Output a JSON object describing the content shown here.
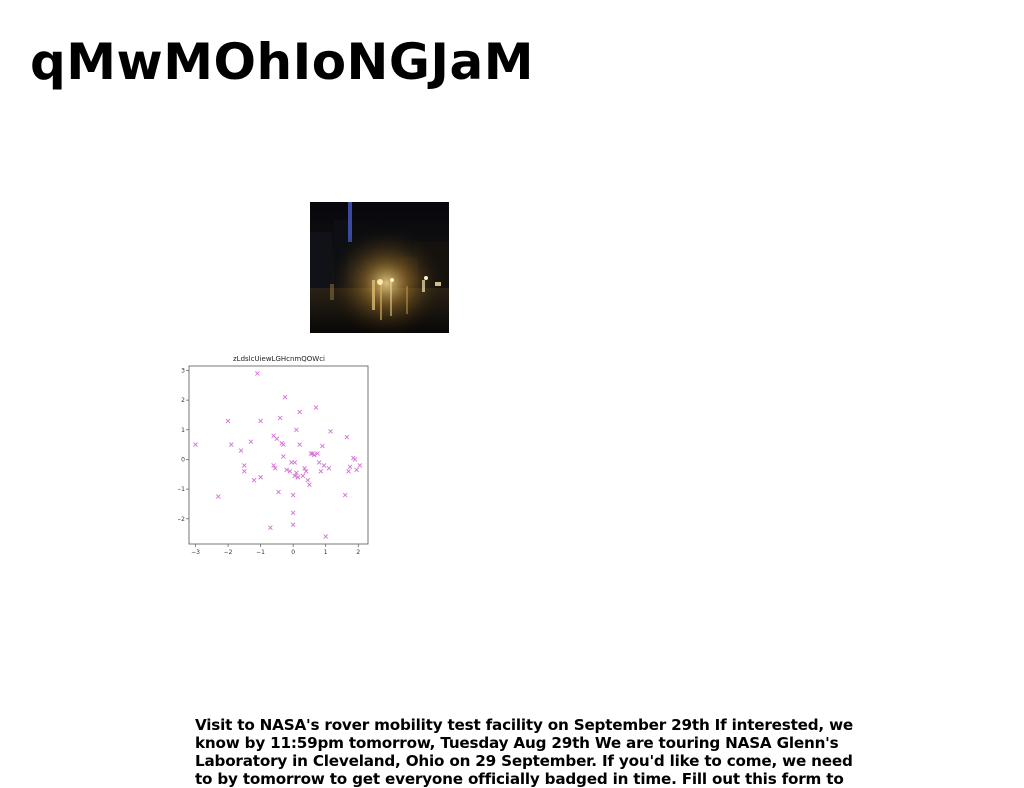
{
  "page": {
    "title": "qMwMOhIoNGJaM",
    "body_text": "Visit to NASA's rover mobility test facility on September 29th If interested, we know by 11:59pm tomorrow, Tuesday Aug 29th We are touring NASA Glenn's Laboratory in Cleveland, Ohio on 29 September. If you'd like to come, we need to by tomorrow to get everyone officially badged in time. Fill out this form to"
  },
  "photo": {
    "subject": "night-street-with-lights"
  },
  "chart_data": {
    "type": "scatter",
    "title": "zLdslcUiewLGHcnmQOWci",
    "xlabel": "",
    "ylabel": "",
    "xlim": [
      -3.2,
      2.3
    ],
    "ylim": [
      -2.85,
      3.15
    ],
    "xticks": [
      -3,
      -2,
      -1,
      0,
      1,
      2
    ],
    "yticks": [
      -2,
      -1,
      0,
      1,
      2,
      3
    ],
    "grid": false,
    "marker": "x",
    "color": "#d670d6",
    "points": [
      [
        -3.0,
        0.5
      ],
      [
        -2.3,
        -1.25
      ],
      [
        -2.0,
        1.3
      ],
      [
        -1.9,
        0.5
      ],
      [
        -1.6,
        0.3
      ],
      [
        -1.5,
        -0.2
      ],
      [
        -1.5,
        -0.4
      ],
      [
        -1.3,
        0.6
      ],
      [
        -1.2,
        -0.7
      ],
      [
        -1.1,
        2.9
      ],
      [
        -1.0,
        1.3
      ],
      [
        -1.0,
        -0.6
      ],
      [
        -0.7,
        -2.3
      ],
      [
        -0.6,
        0.8
      ],
      [
        -0.6,
        -0.2
      ],
      [
        -0.55,
        -0.3
      ],
      [
        -0.5,
        0.7
      ],
      [
        -0.45,
        -1.1
      ],
      [
        -0.4,
        1.4
      ],
      [
        -0.35,
        0.55
      ],
      [
        -0.3,
        0.5
      ],
      [
        -0.3,
        0.1
      ],
      [
        -0.25,
        2.1
      ],
      [
        -0.2,
        -0.35
      ],
      [
        -0.1,
        -0.4
      ],
      [
        -0.05,
        -0.1
      ],
      [
        0.0,
        -1.2
      ],
      [
        0.0,
        -1.8
      ],
      [
        0.0,
        -2.2
      ],
      [
        0.05,
        -0.1
      ],
      [
        0.05,
        -0.55
      ],
      [
        0.1,
        1.0
      ],
      [
        0.1,
        -0.45
      ],
      [
        0.15,
        -0.6
      ],
      [
        0.2,
        1.6
      ],
      [
        0.2,
        0.5
      ],
      [
        0.3,
        -0.55
      ],
      [
        0.35,
        -0.3
      ],
      [
        0.4,
        -0.4
      ],
      [
        0.45,
        -0.7
      ],
      [
        0.5,
        -0.85
      ],
      [
        0.55,
        0.2
      ],
      [
        0.6,
        0.2
      ],
      [
        0.65,
        0.15
      ],
      [
        0.7,
        1.75
      ],
      [
        0.75,
        0.2
      ],
      [
        0.8,
        -0.1
      ],
      [
        0.85,
        -0.4
      ],
      [
        0.9,
        0.45
      ],
      [
        0.95,
        -0.2
      ],
      [
        1.0,
        -2.6
      ],
      [
        1.1,
        -0.3
      ],
      [
        1.15,
        0.95
      ],
      [
        1.6,
        -1.2
      ],
      [
        1.65,
        0.75
      ],
      [
        1.7,
        -0.4
      ],
      [
        1.75,
        -0.25
      ],
      [
        1.85,
        0.05
      ],
      [
        1.9,
        0.0
      ],
      [
        1.95,
        -0.35
      ],
      [
        2.05,
        -0.2
      ]
    ]
  }
}
